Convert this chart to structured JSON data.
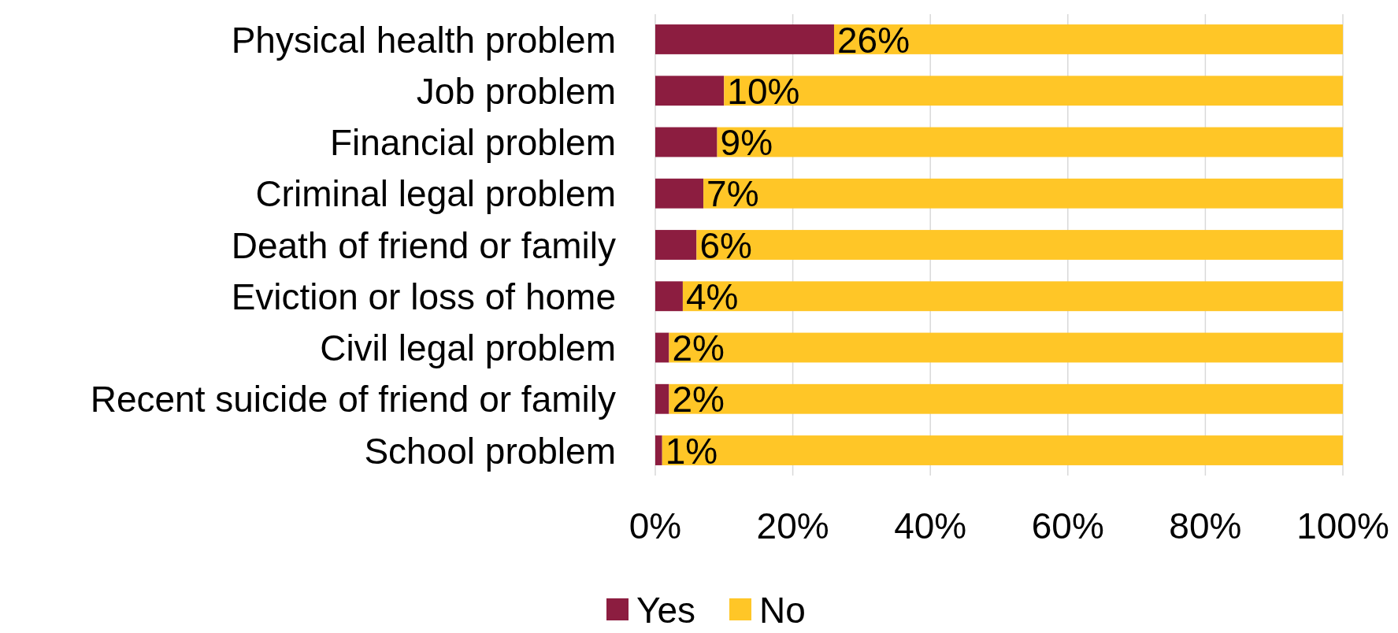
{
  "chart_data": {
    "type": "bar",
    "orientation": "horizontal",
    "stacked": true,
    "categories": [
      "Physical health problem",
      "Job problem",
      "Financial problem",
      "Criminal legal problem",
      "Death of friend or family",
      "Eviction or loss of home",
      "Civil legal problem",
      "Recent suicide of friend or family",
      "School problem"
    ],
    "series": [
      {
        "name": "Yes",
        "color": "#8c1d40",
        "values": [
          26,
          10,
          9,
          7,
          6,
          4,
          2,
          2,
          1
        ],
        "value_labels": [
          "26%",
          "10%",
          "9%",
          "7%",
          "6%",
          "4%",
          "2%",
          "2%",
          "1%"
        ]
      },
      {
        "name": "No",
        "color": "#ffc627",
        "values": [
          74,
          90,
          91,
          93,
          94,
          96,
          98,
          98,
          99
        ]
      }
    ],
    "xlim": [
      0,
      100
    ],
    "xticks": [
      {
        "value": 0,
        "label": "0%"
      },
      {
        "value": 20,
        "label": "20%"
      },
      {
        "value": 40,
        "label": "40%"
      },
      {
        "value": 60,
        "label": "60%"
      },
      {
        "value": 80,
        "label": "80%"
      },
      {
        "value": 100,
        "label": "100%"
      }
    ],
    "grid": "x",
    "legend": "bottom"
  }
}
